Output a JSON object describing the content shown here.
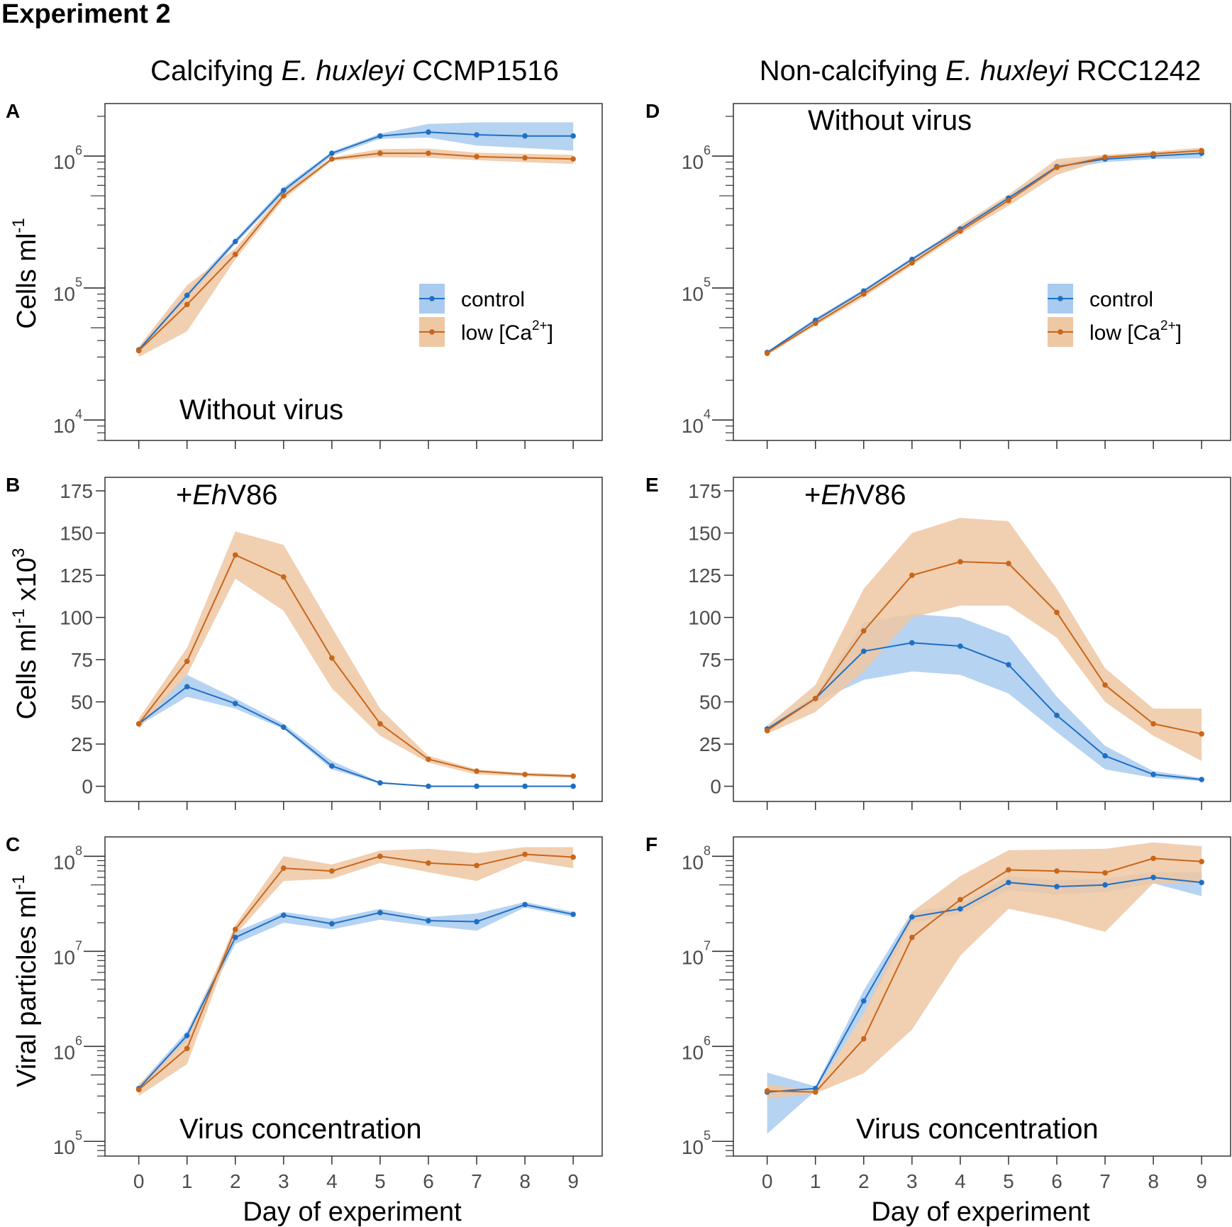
{
  "figure": {
    "title": "Experiment 2",
    "columns": [
      {
        "prefix": "Calcifying ",
        "italic": "E. huxleyi",
        "suffix": " CCMP1516"
      },
      {
        "prefix": "Non-calcifying ",
        "italic": "E. huxleyi",
        "suffix": " RCC1242"
      }
    ],
    "row_ylabels": [
      {
        "text": "Cells ml",
        "sup": "-1",
        "tail": ""
      },
      {
        "text": "Cells ml",
        "sup": "-1",
        "tail": " x10",
        "sup2": "3"
      },
      {
        "text": "Viral particles ml",
        "sup": "-1",
        "tail": ""
      }
    ],
    "xlabel": "Day of experiment",
    "legend": {
      "control": "control",
      "low_prefix": "low [Ca",
      "low_sup": "2+",
      "low_suffix": "]"
    }
  },
  "colors": {
    "control": "#1f6fc5",
    "control_band": "#a9cbef",
    "low_ca": "#c8661a",
    "low_ca_band": "#eec7a3",
    "frame": "#333333",
    "tick_label": "#4d4d4d"
  },
  "chart_data": [
    {
      "id": "A",
      "type": "line",
      "scale": "log",
      "x": [
        0,
        1,
        2,
        3,
        4,
        5,
        6,
        7,
        8,
        9
      ],
      "xlabel": "Day of experiment",
      "ylabel": "Cells ml-1",
      "ylim": [
        7000,
        2500000
      ],
      "yticks": [
        4,
        5,
        6
      ],
      "annotation": "Without virus",
      "annotation_pos": "bottom-left",
      "legend": "right",
      "series": [
        {
          "name": "control",
          "values": [
            34000,
            88000,
            225000,
            550000,
            1050000,
            1420000,
            1520000,
            1450000,
            1420000,
            1420000
          ],
          "lower": [
            33000,
            82000,
            215000,
            520000,
            1000000,
            1350000,
            1380000,
            1200000,
            1150000,
            1100000
          ],
          "upper": [
            35000,
            95000,
            235000,
            580000,
            1080000,
            1480000,
            1750000,
            1800000,
            1800000,
            1800000
          ]
        },
        {
          "name": "low [Ca2+]",
          "values": [
            33500,
            75000,
            180000,
            500000,
            950000,
            1050000,
            1050000,
            990000,
            970000,
            950000
          ],
          "lower": [
            30000,
            47000,
            165000,
            470000,
            920000,
            980000,
            970000,
            930000,
            900000,
            870000
          ],
          "upper": [
            36000,
            105000,
            200000,
            530000,
            980000,
            1130000,
            1140000,
            1060000,
            1040000,
            1020000
          ]
        }
      ]
    },
    {
      "id": "B",
      "type": "line",
      "scale": "linear",
      "x": [
        0,
        1,
        2,
        3,
        4,
        5,
        6,
        7,
        8,
        9
      ],
      "xlabel": "Day of experiment",
      "ylabel": "Cells ml-1 x10^3",
      "ylim": [
        -9,
        183
      ],
      "yticks": [
        0,
        25,
        50,
        75,
        100,
        125,
        150,
        175
      ],
      "annotation": "+EhV86",
      "annotation_pos": "top-left",
      "legend": "none",
      "series": [
        {
          "name": "control",
          "values": [
            37,
            59,
            49,
            35,
            12,
            2,
            0,
            0,
            0,
            0
          ],
          "lower": [
            36,
            53,
            46,
            34,
            10,
            1.5,
            0,
            0,
            0,
            0
          ],
          "upper": [
            38,
            66,
            52,
            37,
            15,
            2.5,
            0.5,
            0.3,
            0.3,
            0.3
          ]
        },
        {
          "name": "low [Ca2+]",
          "values": [
            37,
            74,
            137,
            124,
            76,
            37,
            16,
            9,
            7,
            6
          ],
          "lower": [
            34,
            66,
            123,
            104,
            58,
            30,
            14,
            7,
            6,
            5
          ],
          "upper": [
            40,
            82,
            151,
            143,
            94,
            46,
            18,
            10,
            8,
            7
          ]
        }
      ]
    },
    {
      "id": "C",
      "type": "line",
      "scale": "log",
      "x": [
        0,
        1,
        2,
        3,
        4,
        5,
        6,
        7,
        8,
        9
      ],
      "xlabel": "Day of experiment",
      "ylabel": "Viral particles ml-1",
      "ylim": [
        70000,
        160000000
      ],
      "yticks": [
        5,
        6,
        7,
        8
      ],
      "annotation": "Virus concentration",
      "annotation_pos": "bottom-left",
      "legend": "none",
      "series": [
        {
          "name": "control",
          "values": [
            360000,
            1300000,
            14000000,
            24000000,
            19500000,
            25500000,
            21000000,
            20500000,
            31000000,
            24500000
          ],
          "lower": [
            330000,
            1150000,
            12000000,
            20000000,
            17000000,
            21500000,
            18500000,
            16500000,
            29000000,
            23000000
          ],
          "upper": [
            390000,
            1450000,
            16000000,
            26000000,
            22000000,
            28000000,
            23000000,
            25000000,
            33000000,
            26000000
          ]
        },
        {
          "name": "low [Ca2+]",
          "values": [
            350000,
            950000,
            17000000,
            75000000,
            70000000,
            100000000,
            85000000,
            80000000,
            105000000,
            98000000
          ],
          "lower": [
            300000,
            650000,
            15000000,
            55000000,
            58000000,
            85000000,
            68000000,
            55000000,
            90000000,
            75000000
          ],
          "upper": [
            400000,
            1200000,
            19000000,
            100000000,
            82000000,
            115000000,
            120000000,
            108000000,
            125000000,
            125000000
          ]
        }
      ]
    },
    {
      "id": "D",
      "type": "line",
      "scale": "log",
      "x": [
        0,
        1,
        2,
        3,
        4,
        5,
        6,
        7,
        8,
        9
      ],
      "xlabel": "Day of experiment",
      "ylabel": "Cells ml-1",
      "ylim": [
        7000,
        2500000
      ],
      "yticks": [
        4,
        5,
        6
      ],
      "annotation": "Without virus",
      "annotation_pos": "top-left",
      "legend": "right",
      "series": [
        {
          "name": "control",
          "values": [
            32500,
            57000,
            95000,
            165000,
            280000,
            480000,
            830000,
            950000,
            1000000,
            1050000
          ],
          "lower": [
            32000,
            55000,
            92000,
            160000,
            270000,
            460000,
            780000,
            900000,
            950000,
            960000
          ],
          "upper": [
            33000,
            59000,
            98000,
            170000,
            290000,
            500000,
            880000,
            1000000,
            1050000,
            1100000
          ]
        },
        {
          "name": "low [Ca2+]",
          "values": [
            32000,
            54000,
            90000,
            155000,
            270000,
            460000,
            820000,
            980000,
            1040000,
            1100000
          ],
          "lower": [
            31000,
            52000,
            85000,
            148000,
            255000,
            420000,
            720000,
            940000,
            1000000,
            1050000
          ],
          "upper": [
            33000,
            56000,
            96000,
            162000,
            300000,
            510000,
            950000,
            1020000,
            1080000,
            1160000
          ]
        }
      ]
    },
    {
      "id": "E",
      "type": "line",
      "scale": "linear",
      "x": [
        0,
        1,
        2,
        3,
        4,
        5,
        6,
        7,
        8,
        9
      ],
      "xlabel": "Day of experiment",
      "ylabel": "Cells ml-1 x10^3",
      "ylim": [
        -9,
        183
      ],
      "yticks": [
        0,
        25,
        50,
        75,
        100,
        125,
        150,
        175
      ],
      "annotation": "+EhV86",
      "annotation_pos": "top-left",
      "legend": "none",
      "series": [
        {
          "name": "control",
          "values": [
            34,
            52,
            80,
            85,
            83,
            72,
            42,
            18,
            7,
            4
          ],
          "lower": [
            33,
            50,
            63,
            68,
            66,
            55,
            32,
            10,
            5,
            3
          ],
          "upper": [
            35,
            54,
            97,
            102,
            100,
            89,
            53,
            24,
            9,
            5
          ]
        },
        {
          "name": "low [Ca2+]",
          "values": [
            33,
            52,
            92,
            125,
            133,
            132,
            103,
            60,
            37,
            31
          ],
          "lower": [
            31,
            44,
            68,
            100,
            107,
            107,
            88,
            50,
            30,
            15
          ],
          "upper": [
            36,
            60,
            117,
            150,
            159,
            157,
            117,
            70,
            46,
            46
          ]
        }
      ]
    },
    {
      "id": "F",
      "type": "line",
      "scale": "log",
      "x": [
        0,
        1,
        2,
        3,
        4,
        5,
        6,
        7,
        8,
        9
      ],
      "xlabel": "Day of experiment",
      "ylabel": "Viral particles ml-1",
      "ylim": [
        70000,
        160000000
      ],
      "yticks": [
        5,
        6,
        7,
        8
      ],
      "annotation": "Virus concentration",
      "annotation_pos": "bottom-right",
      "legend": "none",
      "series": [
        {
          "name": "control",
          "values": [
            330000,
            360000,
            3000000,
            23000000,
            28000000,
            53000000,
            48000000,
            50000000,
            60000000,
            53000000
          ],
          "lower": [
            120000,
            340000,
            2200000,
            20000000,
            25000000,
            44000000,
            40000000,
            42000000,
            52000000,
            38000000
          ],
          "upper": [
            530000,
            380000,
            3900000,
            26000000,
            31000000,
            62000000,
            56000000,
            58000000,
            68000000,
            68000000
          ]
        },
        {
          "name": "low [Ca2+]",
          "values": [
            340000,
            330000,
            1200000,
            14000000,
            35000000,
            72000000,
            70000000,
            67000000,
            95000000,
            88000000
          ],
          "lower": [
            280000,
            320000,
            520000,
            1500000,
            9000000,
            28000000,
            22000000,
            16000000,
            52000000,
            52000000
          ],
          "upper": [
            400000,
            340000,
            2200000,
            26000000,
            62000000,
            116000000,
            118000000,
            120000000,
            140000000,
            128000000
          ]
        }
      ]
    }
  ]
}
